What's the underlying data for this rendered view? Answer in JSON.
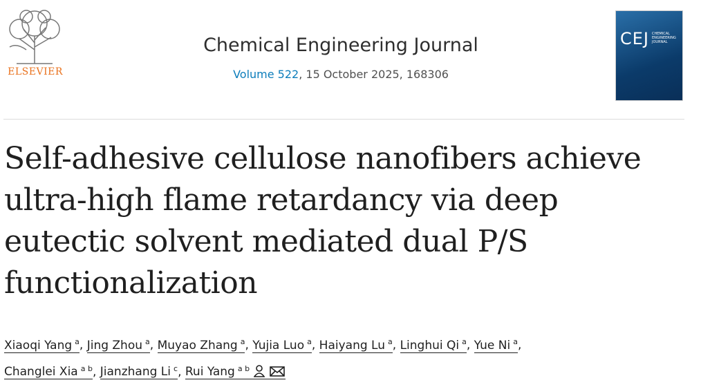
{
  "publisher": "ELSEVIER",
  "journal": {
    "name": "Chemical Engineering Journal",
    "volume": "Volume 522",
    "details": ", 15 October 2025, 168306"
  },
  "cover": {
    "logo": "CEJ",
    "subtitle": "CHEMICAL ENGINEERING JOURNAL"
  },
  "article": {
    "title": "Self-adhesive cellulose nanofibers achieve ultra-high flame retardancy via deep eutectic solvent mediated dual P/S functionalization",
    "separator": ",",
    "author_lines": [
      [
        {
          "name": "Xiaoqi Yang",
          "aff": "a"
        },
        {
          "name": "Jing Zhou",
          "aff": "a"
        },
        {
          "name": "Muyao Zhang",
          "aff": "a"
        },
        {
          "name": "Yujia Luo",
          "aff": "a"
        },
        {
          "name": "Haiyang Lu",
          "aff": "a"
        },
        {
          "name": "Linghui Qi",
          "aff": "a"
        },
        {
          "name": "Yue Ni",
          "aff": "a"
        }
      ],
      [
        {
          "name": "Changlei Xia",
          "aff": "a b"
        },
        {
          "name": "Jianzhang Li",
          "aff": "c"
        },
        {
          "name": "Rui Yang",
          "aff": "a b"
        }
      ]
    ]
  }
}
